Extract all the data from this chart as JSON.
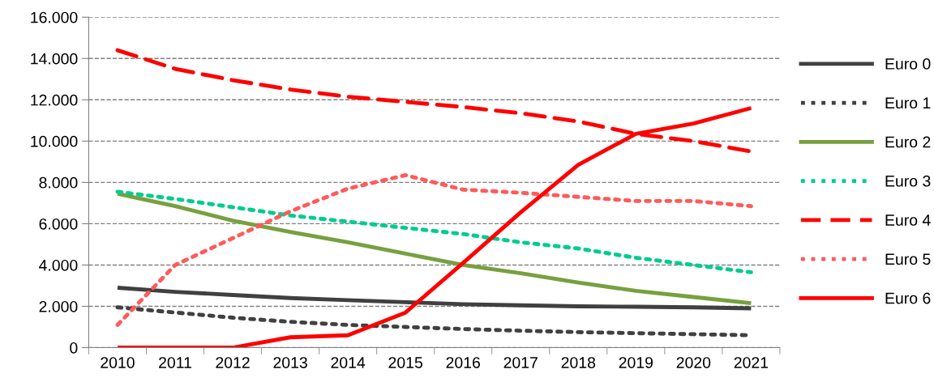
{
  "chart_data": {
    "type": "line",
    "categories": [
      "2010",
      "2011",
      "2012",
      "2013",
      "2014",
      "2015",
      "2016",
      "2017",
      "2018",
      "2019",
      "2020",
      "2021"
    ],
    "series": [
      {
        "name": "Euro 0",
        "color": "#404040",
        "line_style": "solid",
        "values": [
          2900,
          2700,
          2550,
          2400,
          2300,
          2200,
          2100,
          2050,
          2000,
          1980,
          1950,
          1900
        ]
      },
      {
        "name": "Euro 1",
        "color": "#404040",
        "line_style": "dotted",
        "values": [
          1950,
          1700,
          1450,
          1250,
          1100,
          1000,
          900,
          820,
          750,
          700,
          650,
          600
        ]
      },
      {
        "name": "Euro 2",
        "color": "#77a03f",
        "line_style": "solid",
        "values": [
          7450,
          6850,
          6150,
          5600,
          5100,
          4550,
          4000,
          3600,
          3150,
          2750,
          2450,
          2150
        ]
      },
      {
        "name": "Euro 3",
        "color": "#00cc8f",
        "line_style": "dotted",
        "values": [
          7550,
          7200,
          6800,
          6400,
          6100,
          5800,
          5500,
          5100,
          4800,
          4350,
          4000,
          3650
        ]
      },
      {
        "name": "Euro 4",
        "color": "#ff0000",
        "line_style": "dashed",
        "values": [
          14400,
          13500,
          12950,
          12500,
          12150,
          11900,
          11650,
          11350,
          10950,
          10350,
          10000,
          9500
        ]
      },
      {
        "name": "Euro 5",
        "color": "#ff5a5a",
        "line_style": "dotted",
        "values": [
          1100,
          4000,
          5300,
          6600,
          7700,
          8350,
          7650,
          7500,
          7300,
          7100,
          7100,
          6850
        ]
      },
      {
        "name": "Euro 6",
        "color": "#ff0000",
        "line_style": "solid",
        "values": [
          0,
          0,
          0,
          500,
          600,
          1700,
          4100,
          6550,
          8850,
          10350,
          10850,
          11600
        ]
      }
    ],
    "ylim": [
      0,
      16000
    ],
    "yticks": [
      {
        "value": 0,
        "label": "0"
      },
      {
        "value": 2000,
        "label": "2.000"
      },
      {
        "value": 4000,
        "label": "4.000"
      },
      {
        "value": 6000,
        "label": "6.000"
      },
      {
        "value": 8000,
        "label": "8.000"
      },
      {
        "value": 10000,
        "label": "10.000"
      },
      {
        "value": 12000,
        "label": "12.000"
      },
      {
        "value": 14000,
        "label": "14.000"
      },
      {
        "value": 16000,
        "label": "16.000"
      }
    ],
    "grid": "y",
    "legend": "right",
    "marker": "none"
  }
}
